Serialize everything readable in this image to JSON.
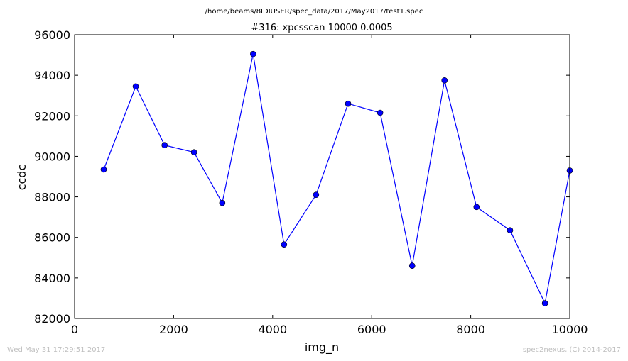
{
  "header": {
    "source_path": "/home/beams/8IDIUSER/spec_data/2017/May2017/test1.spec"
  },
  "footer": {
    "timestamp": "Wed May 31 17:29:51 2017",
    "credit": "spec2nexus, (C) 2014-2017"
  },
  "chart_data": {
    "type": "line",
    "title": "#316: xpcsscan 10000 0.0005",
    "xlabel": "img_n",
    "ylabel": "ccdc",
    "xlim": [
      0,
      10000
    ],
    "ylim": [
      82000,
      96000
    ],
    "xticks": [
      0,
      2000,
      4000,
      6000,
      8000,
      10000
    ],
    "yticks": [
      82000,
      84000,
      86000,
      88000,
      90000,
      92000,
      94000,
      96000
    ],
    "grid": false,
    "line_color": "#0000ff",
    "marker": "circle",
    "series": [
      {
        "x": [
          588,
          1235,
          1818,
          2412,
          2982,
          3606,
          4230,
          4876,
          5524,
          6171,
          6818,
          7471,
          8118,
          8794,
          9500,
          10000
        ],
        "y": [
          89350,
          93450,
          90550,
          90200,
          87700,
          95050,
          85650,
          88100,
          92600,
          92150,
          84600,
          93750,
          87500,
          86350,
          82750,
          89300
        ]
      }
    ]
  }
}
